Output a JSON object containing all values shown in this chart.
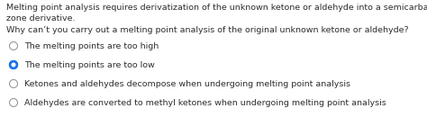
{
  "background_color": "#ffffff",
  "text_color": "#2d2d2d",
  "line1": "Melting point analysis requires derivatization of the unknown ketone or aldehyde into a semicarba",
  "line2": "zone derivative.",
  "question": "Why can’t you carry out a melting point analysis of the original unknown ketone or aldehyde?",
  "options": [
    {
      "text": "The melting points are too high",
      "selected": false
    },
    {
      "text": "The melting points are too low",
      "selected": true
    },
    {
      "text": "Ketones and aldehydes decompose when undergoing melting point analysis",
      "selected": false
    },
    {
      "text": "Aldehydes are converted to methyl ketones when undergoing melting point analysis",
      "selected": false
    }
  ],
  "radio_selected_color": "#1a73e8",
  "radio_border_color": "#999999",
  "font_size": 6.8,
  "figwidth": 4.74,
  "figheight": 1.3,
  "dpi": 100
}
